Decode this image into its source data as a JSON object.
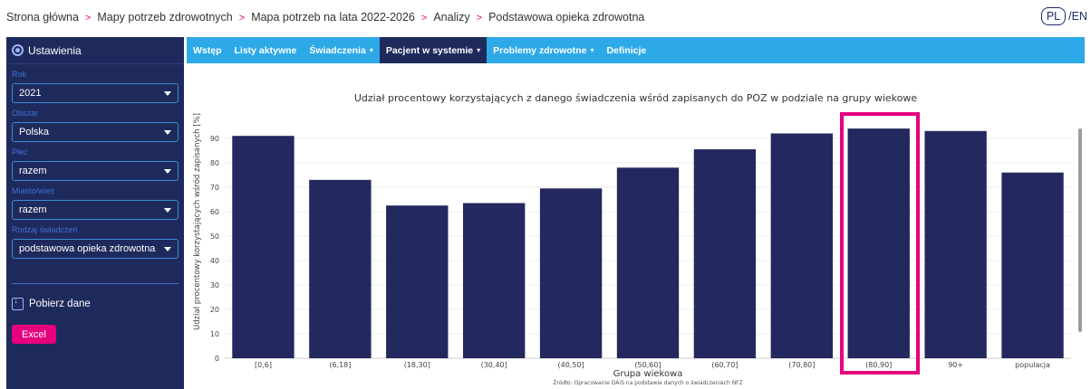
{
  "breadcrumb": {
    "items": [
      "Strona główna",
      "Mapy potrzeb zdrowotnych",
      "Mapa potrzeb na lata 2022-2026",
      "Analizy",
      "Podstawowa opieka zdrowotna"
    ],
    "separator": ">"
  },
  "language": {
    "pl": "PL",
    "slash": "/",
    "en": "EN"
  },
  "sidebar": {
    "header": "Ustawienia",
    "fields": [
      {
        "label": "Rok",
        "value": "2021"
      },
      {
        "label": "Obszar",
        "value": "Polska"
      },
      {
        "label": "Płeć",
        "value": "razem"
      },
      {
        "label": "Miasto/wieś",
        "value": "razem"
      },
      {
        "label": "Rodzaj świadczeń",
        "value": "podstawowa opieka zdrowotna"
      }
    ],
    "download_label": "Pobierz dane",
    "excel_label": "Excel"
  },
  "tabs": [
    {
      "label": "Wstęp",
      "dropdown": false
    },
    {
      "label": "Listy aktywne",
      "dropdown": false
    },
    {
      "label": "Świadczenia",
      "dropdown": true
    },
    {
      "label": "Pacjent w systemie",
      "dropdown": true,
      "active": true
    },
    {
      "label": "Problemy zdrowotne",
      "dropdown": true
    },
    {
      "label": "Definicje",
      "dropdown": false
    }
  ],
  "colors": {
    "sidebar": "#1f2a5c",
    "tabbar": "#2ea9e8",
    "accent": "#e6007e",
    "bar": "#23285e"
  },
  "chart_data": {
    "type": "bar",
    "title": "Udział procentowy korzystających z danego świadczenia wśród zapisanych do POZ w podziale na grupy wiekowe",
    "xlabel": "Grupa wiekowa",
    "ylabel": "Udział procentowy korzystających wśród zapisanych [%]",
    "source": "Źródło: Opracowanie DAiS na podstawie danych o świadczeniach NFZ",
    "categories": [
      "[0,6]",
      "(6,18]",
      "(18,30]",
      "(30,40]",
      "(40,50]",
      "(50,60]",
      "(60,70]",
      "(70,80]",
      "(80,90]",
      "90+",
      "populacja"
    ],
    "values": [
      91,
      73,
      62.5,
      63.5,
      69.5,
      78,
      85.5,
      92,
      94,
      93,
      76
    ],
    "ylim": [
      0,
      97
    ],
    "yticks": [
      0,
      10,
      20,
      30,
      40,
      50,
      60,
      70,
      80,
      90
    ],
    "highlighted_category": "(80,90]",
    "grid": true
  }
}
